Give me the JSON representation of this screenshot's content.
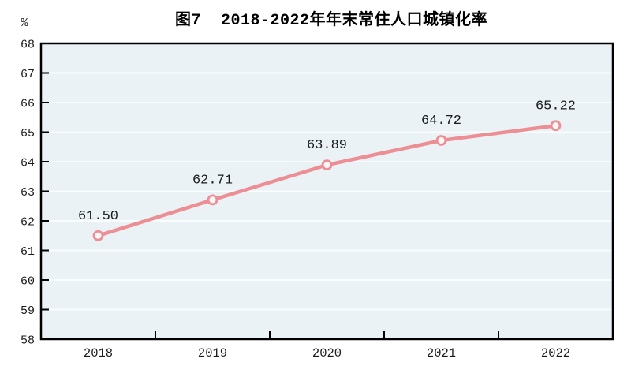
{
  "figure": {
    "title": "图7  2018-2022年年末常住人口城镇化率",
    "y_unit_label": "%"
  },
  "colors": {
    "line": "#ed8e94",
    "marker_fill": "#fdf6f6",
    "plot_background": "#eaf2f6",
    "gridline": "#fafdfe",
    "axis": "#000000",
    "label_text": "#1a1a1a"
  },
  "chart_data": {
    "type": "line",
    "title": "图7  2018-2022年年末常住人口城镇化率",
    "categories": [
      "2018",
      "2019",
      "2020",
      "2021",
      "2022"
    ],
    "values": [
      61.5,
      62.71,
      63.89,
      64.72,
      65.22
    ],
    "data_labels": [
      "61.50",
      "62.71",
      "63.89",
      "64.72",
      "65.22"
    ],
    "xlabel": "",
    "ylabel": "%",
    "ylim": [
      58,
      68
    ],
    "yticks": [
      58,
      59,
      60,
      61,
      62,
      63,
      64,
      65,
      66,
      67,
      68
    ],
    "grid": "horizontal-white",
    "legend": "none",
    "marker": "open-circle",
    "line_color": "#ed8e94"
  }
}
